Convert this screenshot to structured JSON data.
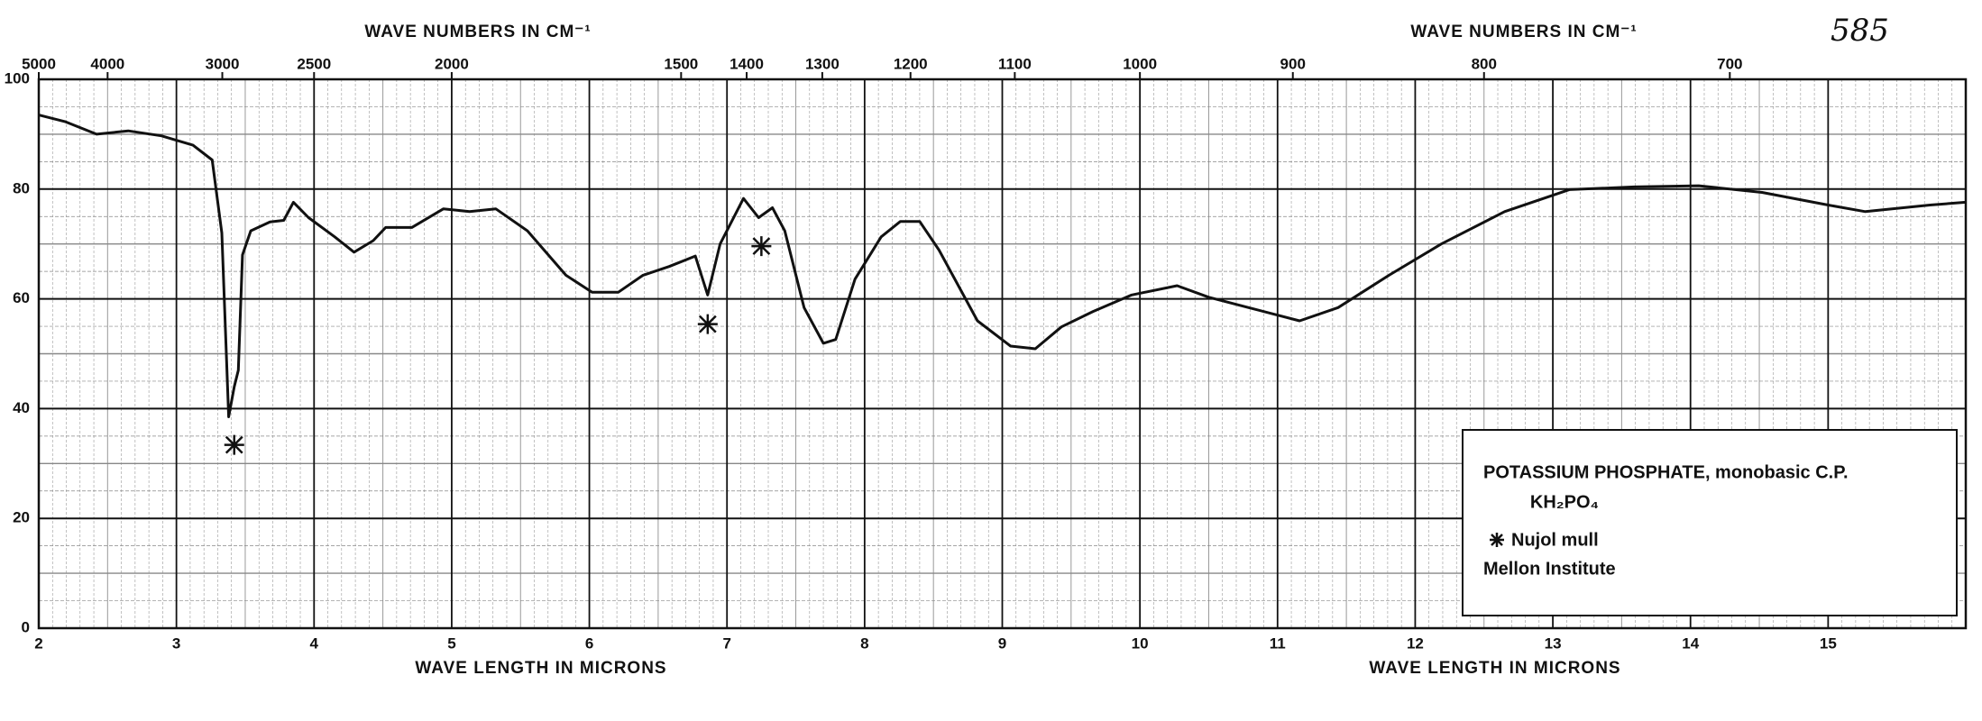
{
  "chart_data": {
    "type": "line",
    "handwritten_number": "585",
    "top_axis_title": "WAVE NUMBERS IN CM⁻¹",
    "x_axis_title": "WAVE LENGTH IN MICRONS",
    "x": [
      2.0,
      2.19,
      2.42,
      2.65,
      2.89,
      3.12,
      3.26,
      3.33,
      3.38,
      3.42,
      3.45,
      3.48,
      3.54,
      3.68,
      3.78,
      3.85,
      3.96,
      4.15,
      4.29,
      4.43,
      4.52,
      4.71,
      4.94,
      5.13,
      5.32,
      5.55,
      5.83,
      6.02,
      6.21,
      6.39,
      6.58,
      6.77,
      6.86,
      6.95,
      7.12,
      7.23,
      7.33,
      7.42,
      7.56,
      7.7,
      7.79,
      7.93,
      8.12,
      8.26,
      8.4,
      8.54,
      8.82,
      9.06,
      9.24,
      9.43,
      9.66,
      9.94,
      10.27,
      10.5,
      10.79,
      11.16,
      11.44,
      11.81,
      12.19,
      12.65,
      13.12,
      13.59,
      14.06,
      14.52,
      15.0,
      15.27,
      15.74,
      16.0
    ],
    "values": [
      93.5,
      92.3,
      90,
      90.6,
      89.7,
      88,
      85.3,
      72,
      38.5,
      44,
      47,
      68,
      72.4,
      74,
      74.3,
      77.6,
      74.8,
      71.3,
      68.5,
      70.6,
      73,
      73,
      76.4,
      75.9,
      76.4,
      72.4,
      64.3,
      61.2,
      61.2,
      64.3,
      65.9,
      67.8,
      60.7,
      70,
      78.3,
      74.8,
      76.6,
      72.4,
      58.4,
      51.9,
      52.6,
      63.6,
      71.3,
      74.1,
      74.1,
      68.9,
      56,
      51.4,
      50.9,
      54.9,
      57.7,
      60.7,
      62.4,
      60.3,
      58.4,
      56,
      58.4,
      64.3,
      70,
      75.9,
      79.9,
      80.4,
      80.6,
      79.4,
      77.1,
      75.9,
      77.1,
      77.6
    ],
    "color": "#111111",
    "nujol_bands": {
      "x": [
        3.42,
        6.86,
        7.25
      ],
      "y": [
        33.4,
        55.4,
        69.6
      ]
    },
    "xlim": [
      2,
      16
    ],
    "xticks": [
      2,
      3,
      4,
      5,
      6,
      7,
      8,
      9,
      10,
      11,
      12,
      13,
      14,
      15
    ],
    "x2ticks": [
      5000,
      4000,
      3000,
      2500,
      2000,
      1500,
      1400,
      1300,
      1200,
      1100,
      1000,
      900,
      800,
      700
    ],
    "ylim": [
      0,
      100
    ],
    "yticks": [
      0,
      20,
      40,
      60,
      80,
      100
    ],
    "grid": true,
    "legend": {
      "title": "POTASSIUM PHOSPHATE, monobasic   C.P.",
      "formula": "KH₂PO₄",
      "sample": "Nujol mull",
      "source": "Mellon Institute"
    }
  }
}
